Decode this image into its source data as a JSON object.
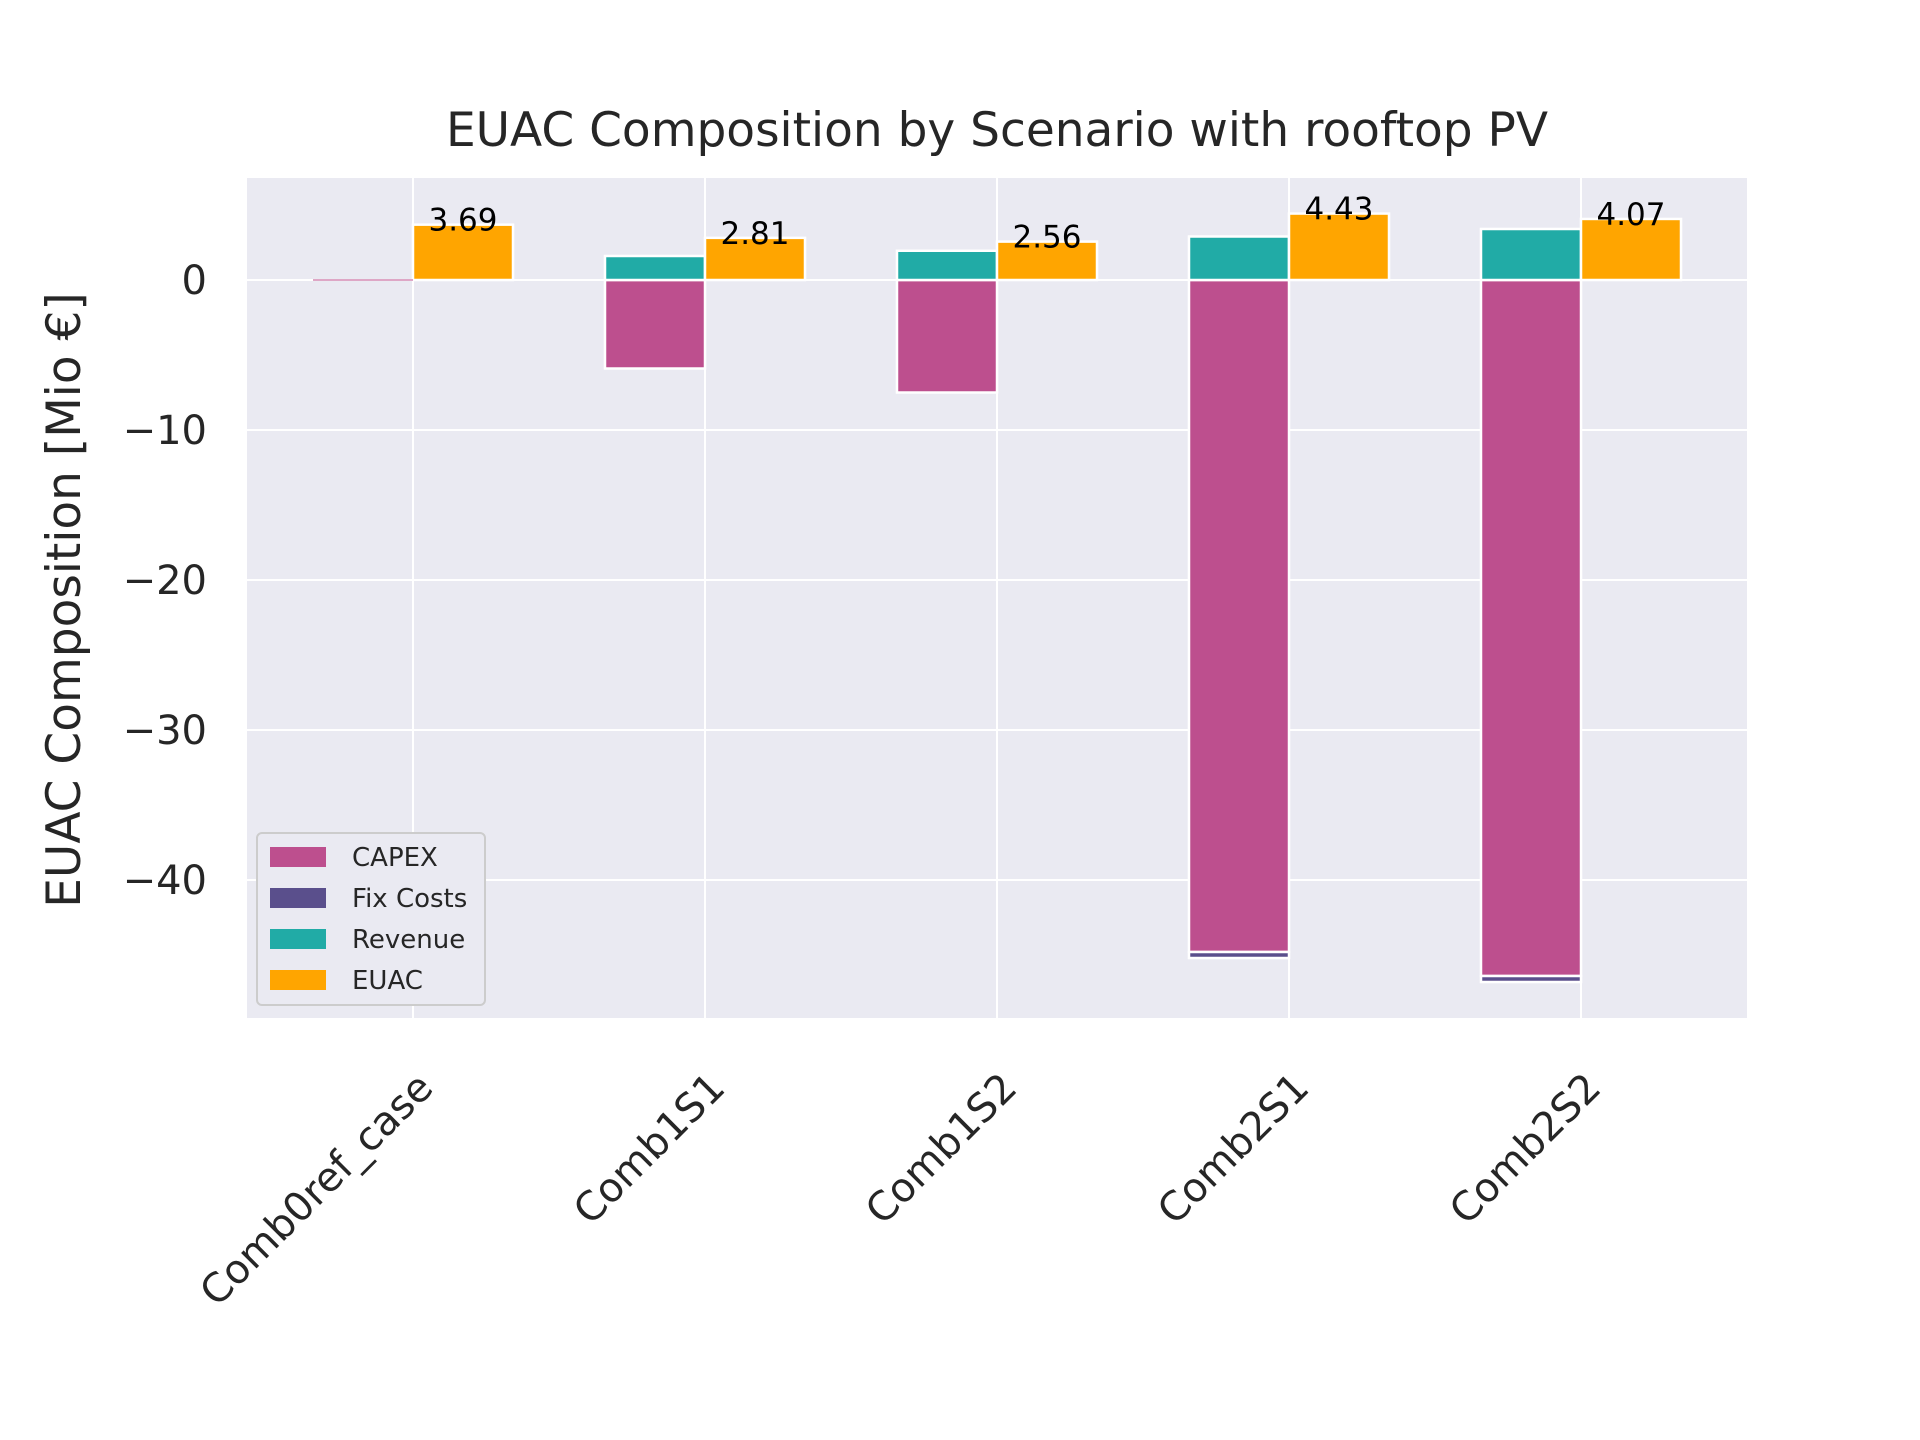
{
  "chart_data": {
    "type": "bar",
    "title": "EUAC Composition by Scenario with rooftop PV",
    "ylabel": "EUAC Composition [Mio €]",
    "xlabel": "",
    "categories": [
      "Comb0ref_case",
      "Comb1S1",
      "Comb1S2",
      "Comb2S1",
      "Comb2S2"
    ],
    "ylim": [
      -49.2,
      6.8
    ],
    "yticks": [
      0,
      -10,
      -20,
      -30,
      -40
    ],
    "ytick_labels": [
      "0",
      "−10",
      "−20",
      "−30",
      "−40"
    ],
    "grid": true,
    "legend_position": "lower-left",
    "series": [
      {
        "name": "CAPEX",
        "color": "#bd4f8e",
        "values": [
          0,
          -5.9,
          -7.5,
          -44.8,
          -46.4
        ],
        "stack": "costs"
      },
      {
        "name": "Fix Costs",
        "color": "#5a4f8c",
        "values": [
          0,
          0,
          0,
          -0.4,
          -0.4
        ],
        "stack": "costs"
      },
      {
        "name": "Revenue",
        "color": "#21aba6",
        "values": [
          0,
          1.6,
          1.95,
          2.9,
          3.4
        ],
        "stack": "costs"
      },
      {
        "name": "EUAC",
        "color": "#ffa500",
        "values": [
          3.69,
          2.81,
          2.56,
          4.43,
          4.07
        ],
        "stack": "euac"
      }
    ],
    "data_labels": [
      "3.69",
      "2.81",
      "2.56",
      "4.43",
      "4.07"
    ]
  }
}
